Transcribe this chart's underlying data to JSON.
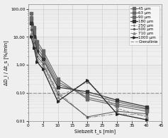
{
  "title": "",
  "xlabel": "Siebzeit t_s [min]",
  "ylabel": "ΔD_i / Δt_s [%/min]",
  "xlim": [
    0,
    45
  ],
  "ylim_log": [
    0.01,
    150
  ],
  "yticks": [
    0.01,
    0.1,
    1.0,
    10.0,
    100.0
  ],
  "ytick_labels": [
    "0,01",
    "0,10",
    "1,00",
    "10,00",
    "100,00"
  ],
  "xticks": [
    0,
    5,
    10,
    15,
    20,
    25,
    30,
    35,
    40,
    45
  ],
  "grenzlinie_y": 0.1,
  "series": [
    {
      "label": "45 μm",
      "color": "#666666",
      "linestyle": "-",
      "marker": "s",
      "markersize": 2.5,
      "linewidth": 0.8,
      "x": [
        1,
        2,
        3,
        5,
        10,
        20,
        30,
        40
      ],
      "y": [
        70,
        22,
        7,
        3.2,
        0.32,
        0.06,
        0.035,
        0.022
      ]
    },
    {
      "label": "63 μm",
      "color": "#666666",
      "linestyle": "-",
      "marker": "s",
      "markersize": 2.5,
      "linewidth": 0.8,
      "x": [
        1,
        2,
        3,
        5,
        10,
        20,
        30,
        40
      ],
      "y": [
        50,
        18,
        5.5,
        2.5,
        0.25,
        0.07,
        0.04,
        0.026
      ]
    },
    {
      "label": "90 μm",
      "color": "#666666",
      "linestyle": "-",
      "marker": "s",
      "markersize": 2.5,
      "linewidth": 0.8,
      "x": [
        1,
        2,
        3,
        5,
        10,
        20,
        30,
        40
      ],
      "y": [
        40,
        14,
        4.0,
        2.0,
        0.2,
        0.09,
        0.048,
        0.028
      ]
    },
    {
      "label": "180 μm",
      "color": "#333333",
      "linestyle": "-",
      "marker": "s",
      "markersize": 2.5,
      "linewidth": 0.9,
      "x": [
        1,
        2,
        3,
        5,
        10,
        20,
        30,
        40
      ],
      "y": [
        30,
        10,
        3.0,
        1.6,
        0.16,
        0.11,
        0.055,
        0.032
      ]
    },
    {
      "label": "250 μm",
      "color": "#888888",
      "linestyle": "-.",
      "marker": ".",
      "markersize": 3,
      "linewidth": 0.7,
      "x": [
        1,
        2,
        3,
        5,
        10,
        20,
        30,
        40
      ],
      "y": [
        22,
        8,
        2.5,
        1.3,
        0.11,
        0.013,
        0.018,
        0.016
      ]
    },
    {
      "label": "500 μm",
      "color": "#555555",
      "linestyle": "-",
      "marker": ".",
      "markersize": 3,
      "linewidth": 0.7,
      "x": [
        1,
        2,
        3,
        5,
        10,
        20,
        30,
        40
      ],
      "y": [
        18,
        6,
        2.0,
        1.1,
        0.09,
        0.014,
        0.022,
        0.018
      ]
    },
    {
      "label": "710 μm",
      "color": "#888888",
      "linestyle": "--",
      "marker": "^",
      "markersize": 2.5,
      "linewidth": 0.7,
      "x": [
        1,
        2,
        3,
        5,
        10,
        20,
        30,
        40
      ],
      "y": [
        13,
        5.0,
        1.6,
        0.9,
        0.07,
        0.25,
        0.028,
        0.014
      ]
    },
    {
      "label": "1000 μm",
      "color": "#222222",
      "linestyle": "-",
      "marker": ">",
      "markersize": 2.5,
      "linewidth": 0.9,
      "x": [
        1,
        2,
        3,
        5,
        10,
        20,
        30,
        40
      ],
      "y": [
        10,
        4.0,
        1.3,
        0.7,
        0.05,
        0.28,
        0.018,
        0.011
      ]
    }
  ],
  "background_color": "#efefef",
  "grid_color": "#d0d0d0",
  "legend_fontsize": 4.0,
  "axis_fontsize": 4.8,
  "tick_fontsize": 4.2
}
